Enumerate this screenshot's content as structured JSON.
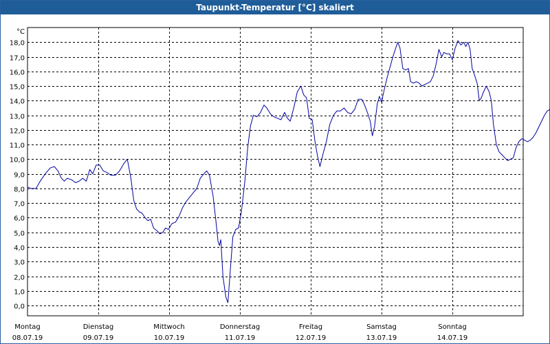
{
  "window": {
    "title": "Taupunkt-Temperatur [°C] skaliert"
  },
  "chart_data": {
    "type": "line",
    "title": "Taupunkt-Temperatur [°C] skaliert",
    "ylabel": "°C",
    "xlabel": "",
    "ylim": [
      -0.7,
      19.0
    ],
    "y_ticks": [
      "0,0",
      "1,0",
      "2,0",
      "3,0",
      "4,0",
      "5,0",
      "6,0",
      "7,0",
      "8,0",
      "9,0",
      "10,0",
      "11,0",
      "12,0",
      "13,0",
      "14,0",
      "15,0",
      "16,0",
      "17,0",
      "18,0"
    ],
    "days": [
      {
        "name": "Montag",
        "date": "08.07.19"
      },
      {
        "name": "Dienstag",
        "date": "09.07.19"
      },
      {
        "name": "Mittwoch",
        "date": "10.07.19"
      },
      {
        "name": "Donnerstag",
        "date": "11.07.19"
      },
      {
        "name": "Freitag",
        "date": "12.07.19"
      },
      {
        "name": "Samstag",
        "date": "13.07.19"
      },
      {
        "name": "Sonntag",
        "date": "14.07.19"
      }
    ],
    "grid": true,
    "line_color": "#0000a0",
    "series": [
      {
        "points": [
          [
            0.0,
            8.1
          ],
          [
            0.05,
            8.0
          ],
          [
            0.12,
            8.0
          ],
          [
            0.18,
            8.5
          ],
          [
            0.25,
            9.0
          ],
          [
            0.32,
            9.4
          ],
          [
            0.38,
            9.5
          ],
          [
            0.43,
            9.2
          ],
          [
            0.48,
            8.7
          ],
          [
            0.52,
            8.5
          ],
          [
            0.56,
            8.7
          ],
          [
            0.62,
            8.6
          ],
          [
            0.68,
            8.4
          ],
          [
            0.73,
            8.5
          ],
          [
            0.78,
            8.7
          ],
          [
            0.83,
            8.5
          ],
          [
            0.88,
            9.3
          ],
          [
            0.92,
            9.0
          ],
          [
            0.97,
            9.6
          ],
          [
            1.02,
            9.6
          ],
          [
            1.07,
            9.2
          ],
          [
            1.12,
            9.1
          ],
          [
            1.18,
            8.9
          ],
          [
            1.24,
            8.9
          ],
          [
            1.3,
            9.2
          ],
          [
            1.36,
            9.7
          ],
          [
            1.41,
            10.0
          ],
          [
            1.46,
            8.7
          ],
          [
            1.5,
            7.2
          ],
          [
            1.54,
            6.6
          ],
          [
            1.58,
            6.4
          ],
          [
            1.62,
            6.3
          ],
          [
            1.66,
            6.0
          ],
          [
            1.7,
            5.8
          ],
          [
            1.74,
            5.9
          ],
          [
            1.78,
            5.3
          ],
          [
            1.83,
            5.1
          ],
          [
            1.87,
            4.9
          ],
          [
            1.91,
            5.0
          ],
          [
            1.95,
            5.3
          ],
          [
            1.99,
            5.2
          ],
          [
            2.04,
            5.6
          ],
          [
            2.09,
            5.7
          ],
          [
            2.14,
            6.1
          ],
          [
            2.19,
            6.7
          ],
          [
            2.24,
            7.1
          ],
          [
            2.29,
            7.4
          ],
          [
            2.34,
            7.7
          ],
          [
            2.39,
            8.0
          ],
          [
            2.44,
            8.7
          ],
          [
            2.49,
            9.0
          ],
          [
            2.53,
            9.2
          ],
          [
            2.57,
            8.9
          ],
          [
            2.62,
            7.5
          ],
          [
            2.66,
            5.8
          ],
          [
            2.69,
            4.4
          ],
          [
            2.71,
            4.1
          ],
          [
            2.73,
            4.5
          ],
          [
            2.76,
            2.0
          ],
          [
            2.8,
            0.6
          ],
          [
            2.83,
            0.2
          ],
          [
            2.87,
            2.8
          ],
          [
            2.9,
            4.7
          ],
          [
            2.94,
            5.2
          ],
          [
            2.98,
            5.3
          ],
          [
            3.02,
            6.4
          ],
          [
            3.07,
            8.5
          ],
          [
            3.11,
            10.8
          ],
          [
            3.15,
            12.3
          ],
          [
            3.19,
            13.0
          ],
          [
            3.24,
            12.9
          ],
          [
            3.29,
            13.2
          ],
          [
            3.34,
            13.7
          ],
          [
            3.38,
            13.5
          ],
          [
            3.43,
            13.1
          ],
          [
            3.48,
            12.9
          ],
          [
            3.53,
            12.8
          ],
          [
            3.58,
            12.7
          ],
          [
            3.63,
            13.2
          ],
          [
            3.67,
            12.8
          ],
          [
            3.71,
            12.6
          ],
          [
            3.76,
            13.5
          ],
          [
            3.81,
            14.6
          ],
          [
            3.86,
            15.0
          ],
          [
            3.9,
            14.4
          ],
          [
            3.94,
            14.2
          ],
          [
            3.98,
            12.8
          ],
          [
            4.02,
            12.7
          ],
          [
            4.06,
            11.2
          ],
          [
            4.1,
            10.1
          ],
          [
            4.13,
            9.5
          ],
          [
            4.17,
            10.3
          ],
          [
            4.22,
            11.2
          ],
          [
            4.27,
            12.4
          ],
          [
            4.32,
            13.0
          ],
          [
            4.37,
            13.3
          ],
          [
            4.42,
            13.3
          ],
          [
            4.47,
            13.5
          ],
          [
            4.52,
            13.2
          ],
          [
            4.57,
            13.1
          ],
          [
            4.62,
            13.4
          ],
          [
            4.67,
            14.1
          ],
          [
            4.72,
            14.1
          ],
          [
            4.76,
            13.7
          ],
          [
            4.8,
            13.2
          ],
          [
            4.84,
            12.6
          ],
          [
            4.87,
            11.6
          ],
          [
            4.9,
            12.2
          ],
          [
            4.94,
            13.8
          ],
          [
            4.97,
            14.3
          ],
          [
            5.0,
            13.9
          ],
          [
            5.04,
            14.8
          ],
          [
            5.08,
            15.6
          ],
          [
            5.12,
            16.3
          ],
          [
            5.16,
            17.0
          ],
          [
            5.2,
            17.6
          ],
          [
            5.23,
            18.0
          ],
          [
            5.26,
            17.6
          ],
          [
            5.3,
            16.2
          ],
          [
            5.34,
            16.1
          ],
          [
            5.38,
            16.2
          ],
          [
            5.41,
            15.3
          ],
          [
            5.45,
            15.2
          ],
          [
            5.49,
            15.3
          ],
          [
            5.53,
            15.2
          ],
          [
            5.57,
            15.0
          ],
          [
            5.61,
            15.1
          ],
          [
            5.65,
            15.2
          ],
          [
            5.69,
            15.3
          ],
          [
            5.73,
            15.7
          ],
          [
            5.77,
            16.5
          ],
          [
            5.81,
            17.5
          ],
          [
            5.85,
            17.0
          ],
          [
            5.88,
            17.3
          ],
          [
            5.92,
            17.2
          ],
          [
            5.96,
            17.2
          ],
          [
            6.0,
            16.8
          ],
          [
            6.04,
            17.6
          ],
          [
            6.08,
            18.1
          ],
          [
            6.12,
            17.8
          ],
          [
            6.16,
            18.0
          ],
          [
            6.19,
            17.7
          ],
          [
            6.22,
            18.0
          ],
          [
            6.25,
            17.5
          ],
          [
            6.28,
            16.2
          ],
          [
            6.31,
            15.8
          ],
          [
            6.35,
            15.2
          ],
          [
            6.38,
            14.0
          ],
          [
            6.41,
            14.2
          ],
          [
            6.44,
            14.6
          ],
          [
            6.48,
            15.0
          ],
          [
            6.52,
            14.6
          ],
          [
            6.55,
            14.0
          ],
          [
            6.58,
            12.4
          ],
          [
            6.62,
            11.0
          ],
          [
            6.66,
            10.5
          ],
          [
            6.7,
            10.3
          ],
          [
            6.74,
            10.1
          ],
          [
            6.78,
            9.9
          ],
          [
            6.82,
            10.0
          ],
          [
            6.86,
            10.1
          ],
          [
            6.9,
            10.8
          ],
          [
            6.94,
            11.2
          ],
          [
            6.98,
            11.4
          ],
          [
            7.02,
            11.3
          ],
          [
            7.06,
            11.2
          ],
          [
            7.1,
            11.3
          ],
          [
            7.14,
            11.5
          ],
          [
            7.18,
            11.8
          ],
          [
            7.22,
            12.2
          ],
          [
            7.26,
            12.6
          ],
          [
            7.3,
            13.0
          ],
          [
            7.34,
            13.3
          ],
          [
            7.38,
            13.4
          ],
          [
            7.4,
            13.4
          ]
        ]
      }
    ]
  }
}
